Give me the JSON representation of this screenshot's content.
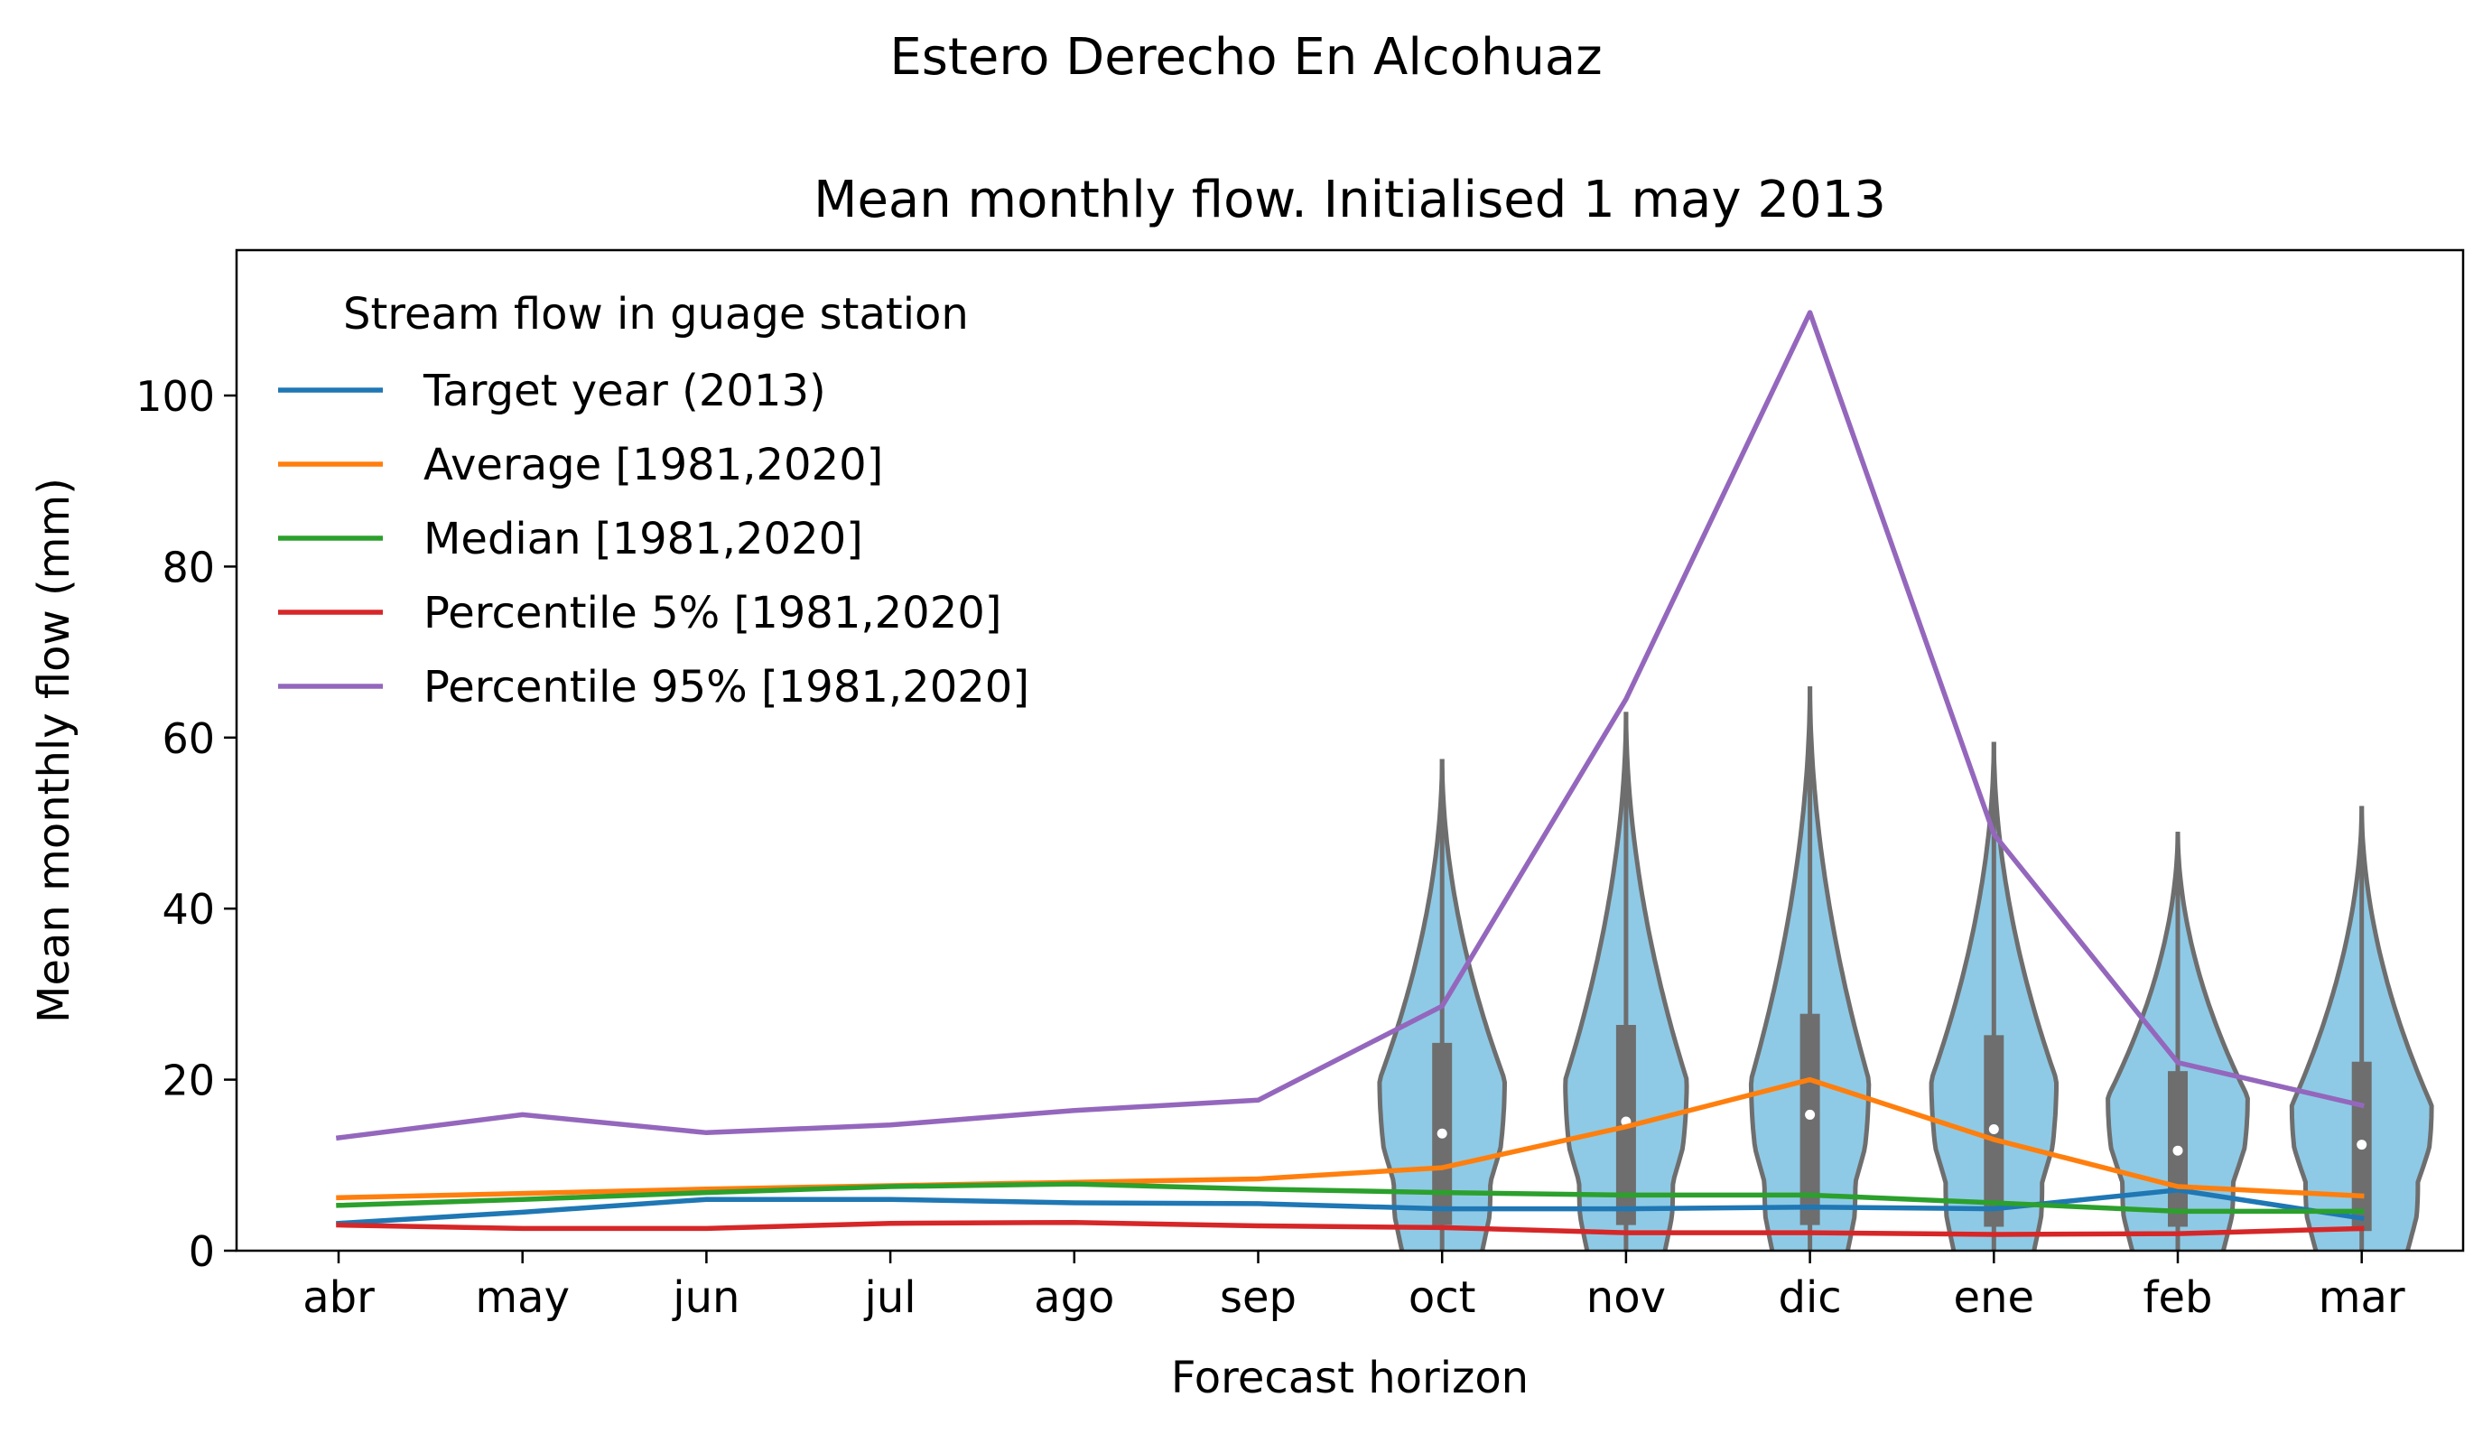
{
  "figure": {
    "suptitle": "Estero Derecho En Alcohuaz"
  },
  "chart_data": {
    "type": "line",
    "title": "Mean monthly flow. Initialised 1 may 2013",
    "xlabel": "Forecast horizon",
    "ylabel": "Mean monthly flow (mm)",
    "ylim": [
      0,
      117
    ],
    "yticks": [
      0,
      20,
      40,
      60,
      80,
      100
    ],
    "grid": false,
    "legend_title": "Stream flow in guage station",
    "legend_position": "top-left",
    "categories": [
      "abr",
      "may",
      "jun",
      "jul",
      "ago",
      "sep",
      "oct",
      "nov",
      "dic",
      "ene",
      "feb",
      "mar"
    ],
    "series": [
      {
        "name": "Target year (2013)",
        "color": "#1f77b4",
        "values": [
          3.2,
          4.5,
          6.0,
          6.0,
          5.6,
          5.5,
          4.9,
          4.9,
          5.1,
          4.9,
          7.1,
          3.8
        ]
      },
      {
        "name": "Average [1981,2020]",
        "color": "#ff7f0e",
        "values": [
          6.2,
          6.7,
          7.2,
          7.6,
          8.0,
          8.4,
          9.7,
          14.5,
          20.0,
          13.0,
          7.5,
          6.4
        ]
      },
      {
        "name": "Median [1981,2020]",
        "color": "#2ca02c",
        "values": [
          5.3,
          6.0,
          6.8,
          7.5,
          7.8,
          7.2,
          6.8,
          6.5,
          6.5,
          5.6,
          4.6,
          4.6
        ]
      },
      {
        "name": "Percentile 5% [1981,2020]",
        "color": "#d62728",
        "values": [
          3.0,
          2.6,
          2.6,
          3.2,
          3.3,
          2.9,
          2.7,
          2.1,
          2.1,
          1.9,
          2.0,
          2.6
        ]
      },
      {
        "name": "Percentile 95% [1981,2020]",
        "color": "#9467bd",
        "values": [
          13.2,
          15.9,
          13.8,
          14.7,
          16.4,
          17.6,
          28.6,
          64.5,
          109.7,
          48.7,
          22.0,
          17.0
        ]
      }
    ],
    "violins": {
      "fill_color": "#8ecae6",
      "edge_color": "#6e6e6e",
      "items": [
        {
          "category": "oct",
          "max": 57.5,
          "q3": 24.3,
          "median": 13.7,
          "q1": 3.0,
          "min": -3,
          "peak_density_y": 20,
          "width": 0.34
        },
        {
          "category": "nov",
          "max": 63.0,
          "q3": 26.4,
          "median": 15.1,
          "q1": 3.0,
          "min": -3,
          "peak_density_y": 20,
          "width": 0.33
        },
        {
          "category": "dic",
          "max": 66.0,
          "q3": 27.7,
          "median": 15.9,
          "q1": 3.0,
          "min": -3,
          "peak_density_y": 20,
          "width": 0.32
        },
        {
          "category": "ene",
          "max": 59.5,
          "q3": 25.2,
          "median": 14.2,
          "q1": 2.8,
          "min": -3,
          "peak_density_y": 20,
          "width": 0.34
        },
        {
          "category": "feb",
          "max": 49.0,
          "q3": 21.0,
          "median": 11.7,
          "q1": 2.8,
          "min": -3,
          "peak_density_y": 18,
          "width": 0.38
        },
        {
          "category": "mar",
          "max": 52.0,
          "q3": 22.1,
          "median": 12.4,
          "q1": 2.3,
          "min": -3,
          "peak_density_y": 17,
          "width": 0.38
        }
      ]
    }
  }
}
